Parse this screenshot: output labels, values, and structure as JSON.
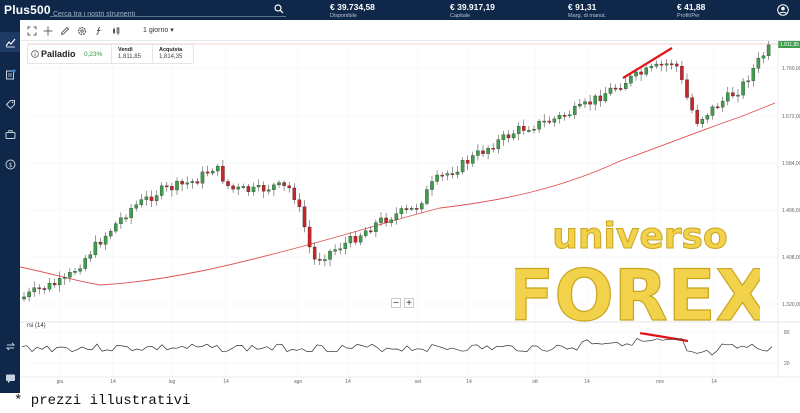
{
  "app": {
    "logo": "Plus500"
  },
  "search": {
    "placeholder": "Cerca tra i nostri strumenti",
    "icon": "search-icon"
  },
  "header_stats": [
    {
      "value": "€ 39.734,58",
      "label": "Disponibile"
    },
    {
      "value": "€ 39.917,19",
      "label": "Capitale"
    },
    {
      "value": "€ 91,31",
      "label": "Marg. di manut."
    },
    {
      "value": "€ 41,88",
      "label": "Profit/Per"
    }
  ],
  "sidebar": {
    "items": [
      "chart-icon",
      "portfolio-icon",
      "tag-icon",
      "briefcase-icon",
      "info-icon",
      "transfer-icon",
      "chat-icon"
    ]
  },
  "toolbar": {
    "period": "1 giorno ▾",
    "tools": [
      "expand-icon",
      "crosshair-icon",
      "pencil-icon",
      "settings-icon",
      "indicator-icon",
      "candles-icon"
    ]
  },
  "instrument": {
    "name": "Palladio",
    "change": "0,23%",
    "sell_label": "Vendi",
    "sell_value": "1.811,85",
    "buy_label": "Acquista",
    "buy_value": "1.814,35"
  },
  "price_axis": {
    "last_price": "1.811,85",
    "ticks": [
      "1.760,00",
      "1.672,00",
      "1.584,00",
      "1.496,00",
      "1.408,00",
      "1.320,00"
    ]
  },
  "rsi": {
    "label": "rsi (14)",
    "ticks": [
      "80",
      "20"
    ]
  },
  "time_axis": {
    "ticks": [
      "giu",
      "14",
      "lug",
      "14",
      "ago",
      "14",
      "set",
      "14",
      "ott",
      "14",
      "nov",
      "14"
    ]
  },
  "zoom": {
    "minus": "−",
    "plus": "+"
  },
  "watermark": {
    "line1": "universo",
    "line2": "FOREX"
  },
  "footer": {
    "note": "* prezzi illustrativi"
  },
  "colors": {
    "header_bg": "#0f2749",
    "up": "#3f9e4c",
    "down": "#c8262a",
    "ma": "#e05252",
    "trend": "#e01515"
  }
}
